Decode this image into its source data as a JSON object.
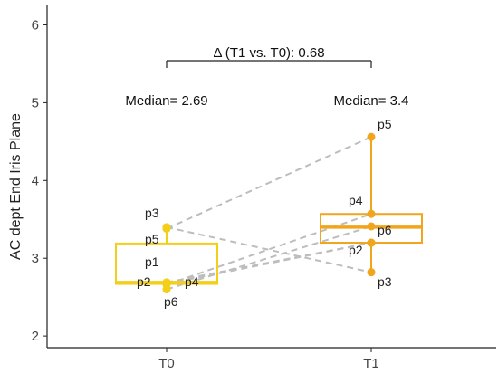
{
  "chart_data": {
    "type": "box",
    "ylabel": "AC dept End Iris Plane",
    "xlabel": "",
    "ylim": [
      1.85,
      6.25
    ],
    "yticks": [
      2,
      3,
      4,
      5,
      6
    ],
    "categories": [
      "T0",
      "T1"
    ],
    "colors": {
      "T0": "#f3cf1a",
      "T1": "#f0a51c",
      "paired_line": "#bdbdbd"
    },
    "boxes": [
      {
        "group": "T0",
        "q1": 2.67,
        "median": 2.69,
        "q3": 3.19,
        "whisker_low": 2.6,
        "whisker_high": 3.41
      },
      {
        "group": "T1",
        "q1": 3.2,
        "median": 3.4,
        "q3": 3.57,
        "whisker_low": 2.82,
        "whisker_high": 4.56
      }
    ],
    "patients": [
      {
        "id": "p1",
        "T0": 2.69,
        "T1": 3.2
      },
      {
        "id": "p2",
        "T0": 2.67,
        "T1": 3.2
      },
      {
        "id": "p3",
        "T0": 3.4,
        "T1": 2.82
      },
      {
        "id": "p4",
        "T0": 2.66,
        "T1": 3.57
      },
      {
        "id": "p5",
        "T0": 3.38,
        "T1": 4.56
      },
      {
        "id": "p6",
        "T0": 2.6,
        "T1": 3.41
      }
    ],
    "point_labels": {
      "T0": [
        "p3",
        "p5",
        "p1",
        "p2",
        "p4",
        "p6"
      ],
      "T1": [
        "p5",
        "p4",
        "p6",
        "p2",
        "p3"
      ]
    },
    "annotations": {
      "median_T0": "Median= 2.69",
      "median_T1": "Median= 3.4",
      "comparison": "Δ (T1 vs. T0): 0.68"
    }
  }
}
